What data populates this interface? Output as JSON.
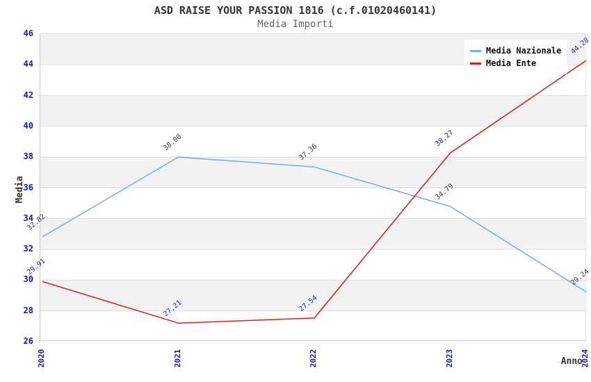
{
  "header": {
    "title": "ASD RAISE YOUR PASSION 1816 (c.f.01020460141)",
    "subtitle": "Media Importi"
  },
  "chart_data": {
    "type": "line",
    "x": [
      "2020",
      "2021",
      "2022",
      "2023",
      "2024"
    ],
    "series": [
      {
        "name": "Media Nazionale",
        "color": "#79ade0",
        "label_color": "#3a3a3a",
        "values": [
          32.82,
          38.0,
          37.36,
          34.79,
          29.24
        ]
      },
      {
        "name": "Media Ente",
        "color": "#e31a1a",
        "label_color": "#2626b0",
        "values": [
          29.91,
          27.21,
          27.54,
          38.27,
          44.28
        ]
      }
    ],
    "xlabel": "Anno",
    "ylabel": "Media",
    "ylim": [
      26,
      46
    ],
    "ytick_step": 2,
    "y_ticks": [
      26,
      28,
      30,
      32,
      34,
      36,
      38,
      40,
      42,
      44,
      46
    ],
    "legend_position": "top-right",
    "grid": true,
    "band_color": "#f2f2f2",
    "gridline_color": "#dedede",
    "axis_line_color": "#c9c9c9",
    "tick_color": "#1414cc"
  }
}
